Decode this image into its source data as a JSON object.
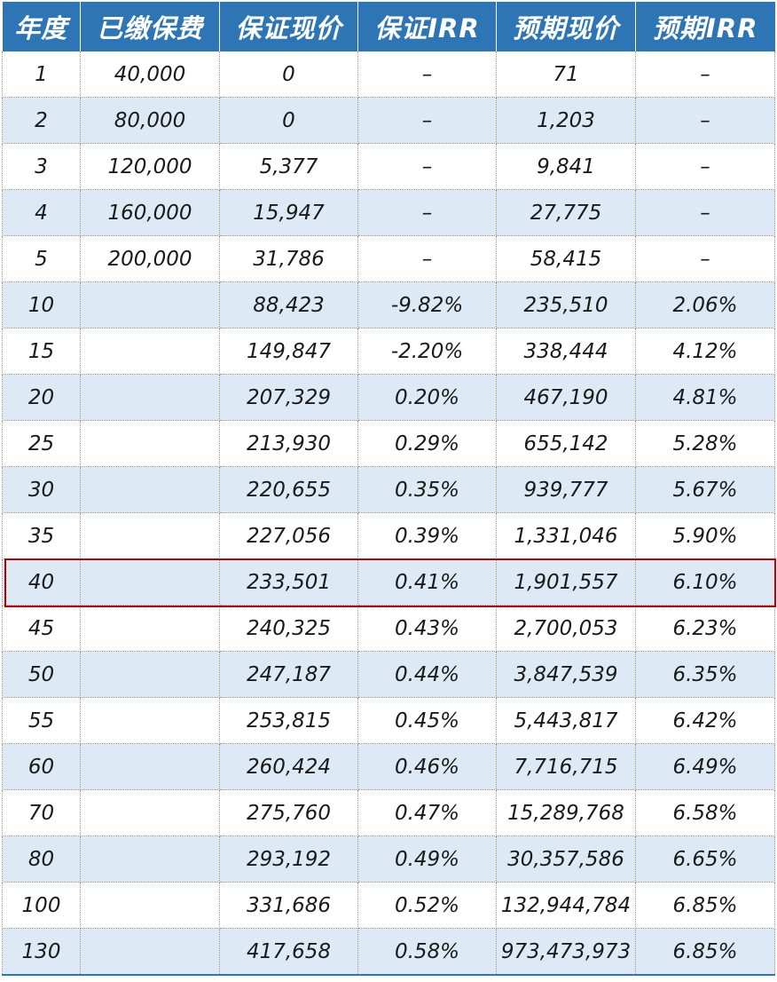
{
  "table": {
    "headers": [
      "年度",
      "已缴保费",
      "保证现价",
      "保证IRR",
      "预期现价",
      "预期IRR"
    ],
    "rows": [
      [
        "1",
        "40,000",
        "0",
        "–",
        "71",
        "–"
      ],
      [
        "2",
        "80,000",
        "0",
        "–",
        "1,203",
        "–"
      ],
      [
        "3",
        "120,000",
        "5,377",
        "–",
        "9,841",
        "–"
      ],
      [
        "4",
        "160,000",
        "15,947",
        "–",
        "27,775",
        "–"
      ],
      [
        "5",
        "200,000",
        "31,786",
        "–",
        "58,415",
        "–"
      ],
      [
        "10",
        "",
        "88,423",
        "-9.82%",
        "235,510",
        "2.06%"
      ],
      [
        "15",
        "",
        "149,847",
        "-2.20%",
        "338,444",
        "4.12%"
      ],
      [
        "20",
        "",
        "207,329",
        "0.20%",
        "467,190",
        "4.81%"
      ],
      [
        "25",
        "",
        "213,930",
        "0.29%",
        "655,142",
        "5.28%"
      ],
      [
        "30",
        "",
        "220,655",
        "0.35%",
        "939,777",
        "5.67%"
      ],
      [
        "35",
        "",
        "227,056",
        "0.39%",
        "1,331,046",
        "5.90%"
      ],
      [
        "40",
        "",
        "233,501",
        "0.41%",
        "1,901,557",
        "6.10%"
      ],
      [
        "45",
        "",
        "240,325",
        "0.43%",
        "2,700,053",
        "6.23%"
      ],
      [
        "50",
        "",
        "247,187",
        "0.44%",
        "3,847,539",
        "6.35%"
      ],
      [
        "55",
        "",
        "253,815",
        "0.45%",
        "5,443,817",
        "6.42%"
      ],
      [
        "60",
        "",
        "260,424",
        "0.46%",
        "7,716,715",
        "6.49%"
      ],
      [
        "70",
        "",
        "275,760",
        "0.47%",
        "15,289,768",
        "6.58%"
      ],
      [
        "80",
        "",
        "293,192",
        "0.49%",
        "30,357,586",
        "6.65%"
      ],
      [
        "100",
        "",
        "331,686",
        "0.52%",
        "132,944,784",
        "6.85%"
      ],
      [
        "130",
        "",
        "417,658",
        "0.58%",
        "973,473,973",
        "6.85%"
      ]
    ],
    "highlighted_row_year": "40"
  },
  "colors": {
    "header_bg": "#2e75b6",
    "header_text": "#ffffff",
    "row_shade": "#dde9f5",
    "highlight_border": "#c00000"
  }
}
